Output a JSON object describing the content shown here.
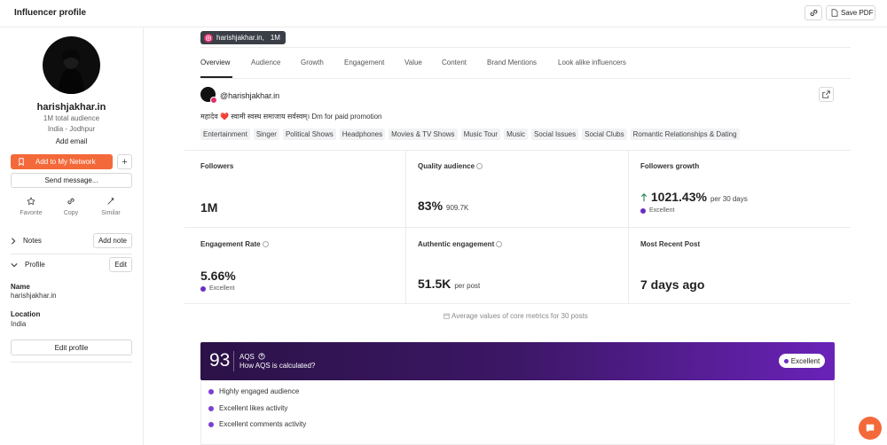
{
  "topbar": {
    "title": "Influencer profile",
    "link_icon": "link-icon",
    "save_pdf_label": "Save PDF"
  },
  "sidebar": {
    "name": "harishjakhar.in",
    "audience": "1M total audience",
    "location": "India - Jodhpur",
    "add_email": "Add email",
    "add_network_label": "Add to My Network",
    "send_message_label": "Send message...",
    "quick_actions": [
      {
        "label": "Favorite",
        "icon": "star-icon"
      },
      {
        "label": "Copy",
        "icon": "link-icon"
      },
      {
        "label": "Similar",
        "icon": "magic-wand-icon"
      }
    ],
    "notes_label": "Notes",
    "add_note_label": "Add note",
    "profile_label": "Profile",
    "edit_label": "Edit",
    "fields": [
      {
        "label": "Name",
        "value": "harishjakhar.in"
      },
      {
        "label": "Location",
        "value": "India"
      }
    ],
    "edit_profile_label": "Edit profile"
  },
  "main": {
    "pill_handle": "harishjakhar.in,",
    "pill_count": "1M",
    "tabs": [
      "Overview",
      "Audience",
      "Growth",
      "Engagement",
      "Value",
      "Content",
      "Brand Mentions",
      "Look alike influencers"
    ],
    "active_tab": "Overview",
    "handle": "@harishjakhar.in",
    "bio": "महादेव ❤️ स्वामी स्वस्थ समाजाय सर्वस्वम्। Dm for paid promotion",
    "tags": [
      "Entertainment",
      "Singer",
      "Political Shows",
      "Headphones",
      "Movies & TV Shows",
      "Music Tour",
      "Music",
      "Social Issues",
      "Social Clubs",
      "Romantic Relationships & Dating"
    ],
    "metrics": {
      "followers": {
        "label": "Followers",
        "value": "1M"
      },
      "quality": {
        "label": "Quality audience",
        "value": "83%",
        "sub": "909.7K"
      },
      "growth": {
        "label": "Followers growth",
        "value": "1021.43%",
        "sub": "per 30 days",
        "badge": "Excellent"
      },
      "engagement_rate": {
        "label": "Engagement Rate",
        "value": "5.66%",
        "badge": "Excellent"
      },
      "authentic": {
        "label": "Authentic engagement",
        "value": "51.5K",
        "sub": "per post"
      },
      "recent_post": {
        "label": "Most Recent Post",
        "value": "7 days ago"
      }
    },
    "avg_note": "Average values of core metrics for 30 posts",
    "aqs": {
      "score": "93",
      "title": "AQS",
      "subtitle": "How AQS is calculated?",
      "badge": "Excellent",
      "items": [
        "Highly engaged audience",
        "Excellent likes activity",
        "Excellent comments activity"
      ]
    }
  },
  "colors": {
    "accent": "#f4693a",
    "aqs_purple": "#6a22b8",
    "badge_purple": "#6a2ec2"
  }
}
